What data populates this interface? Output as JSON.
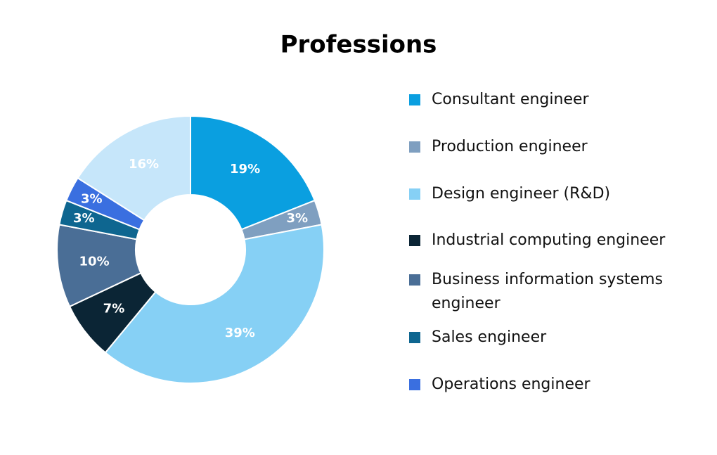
{
  "chart_data": {
    "type": "donut",
    "title": "Professions",
    "categories": [
      "Consultant engineer",
      "Production engineer",
      "Design engineer (R&D)",
      "Industrial computing engineer",
      "Business information systems engineer",
      "Sales engineer",
      "Operations engineer",
      null
    ],
    "values": [
      19,
      3,
      39,
      7,
      10,
      3,
      3,
      16
    ],
    "value_labels": [
      "19%",
      "3%",
      "39%",
      "7%",
      "10%",
      "3%",
      "3%",
      "16%"
    ],
    "colors": [
      "#0a9fe0",
      "#7f9fc0",
      "#86d0f5",
      "#0b2535",
      "#4a6e96",
      "#0e6690",
      "#3a6fe0",
      "#c6e6fa"
    ]
  }
}
